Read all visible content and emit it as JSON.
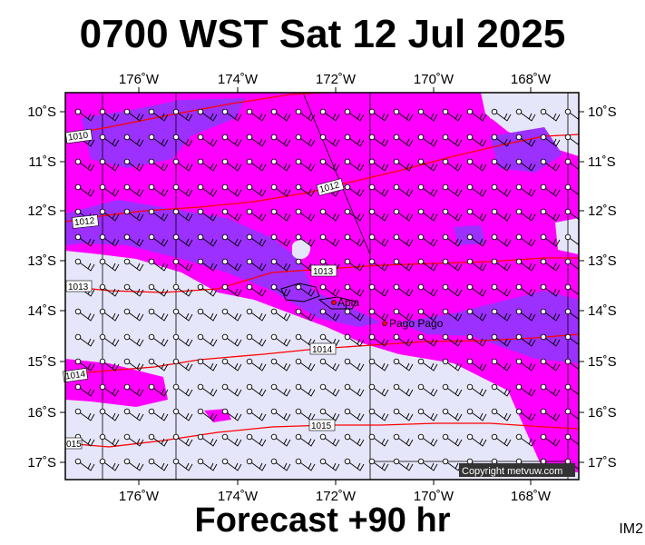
{
  "title": "0700 WST Sat 12 Jul 2025",
  "footer": "Forecast +90 hr",
  "image_code": "IM2",
  "copyright": "Copyright metvuw.com",
  "longitude_labels": [
    "176˚W",
    "174˚W",
    "172˚W",
    "170˚W",
    "168˚W"
  ],
  "latitude_labels": [
    "10˚S",
    "11˚S",
    "12˚S",
    "13˚S",
    "14˚S",
    "15˚S",
    "16˚S",
    "17˚S"
  ],
  "places": [
    {
      "name": "Apia",
      "lon": -171.75,
      "lat": -13.83
    },
    {
      "name": "Pago Pago",
      "lon": -170.7,
      "lat": -14.28
    }
  ],
  "isobars": [
    {
      "label": "1012",
      "pressure": 1012
    },
    {
      "label": "1013",
      "pressure": 1013
    },
    {
      "label": "1014",
      "pressure": 1014
    },
    {
      "label": "1015",
      "pressure": 1015
    }
  ],
  "map_extent": {
    "lon_min": -177.3,
    "lon_max": -167.1,
    "lat_min": -17.35,
    "lat_max": -9.65
  },
  "colors": {
    "land_or_low": "#e6e6fa",
    "magenta": "#ff00ff",
    "purple": "#9b30ff",
    "isobar": "#ff0000",
    "wind_barb": "#000000"
  },
  "wind_barb_icon": "wind-barb-icon"
}
